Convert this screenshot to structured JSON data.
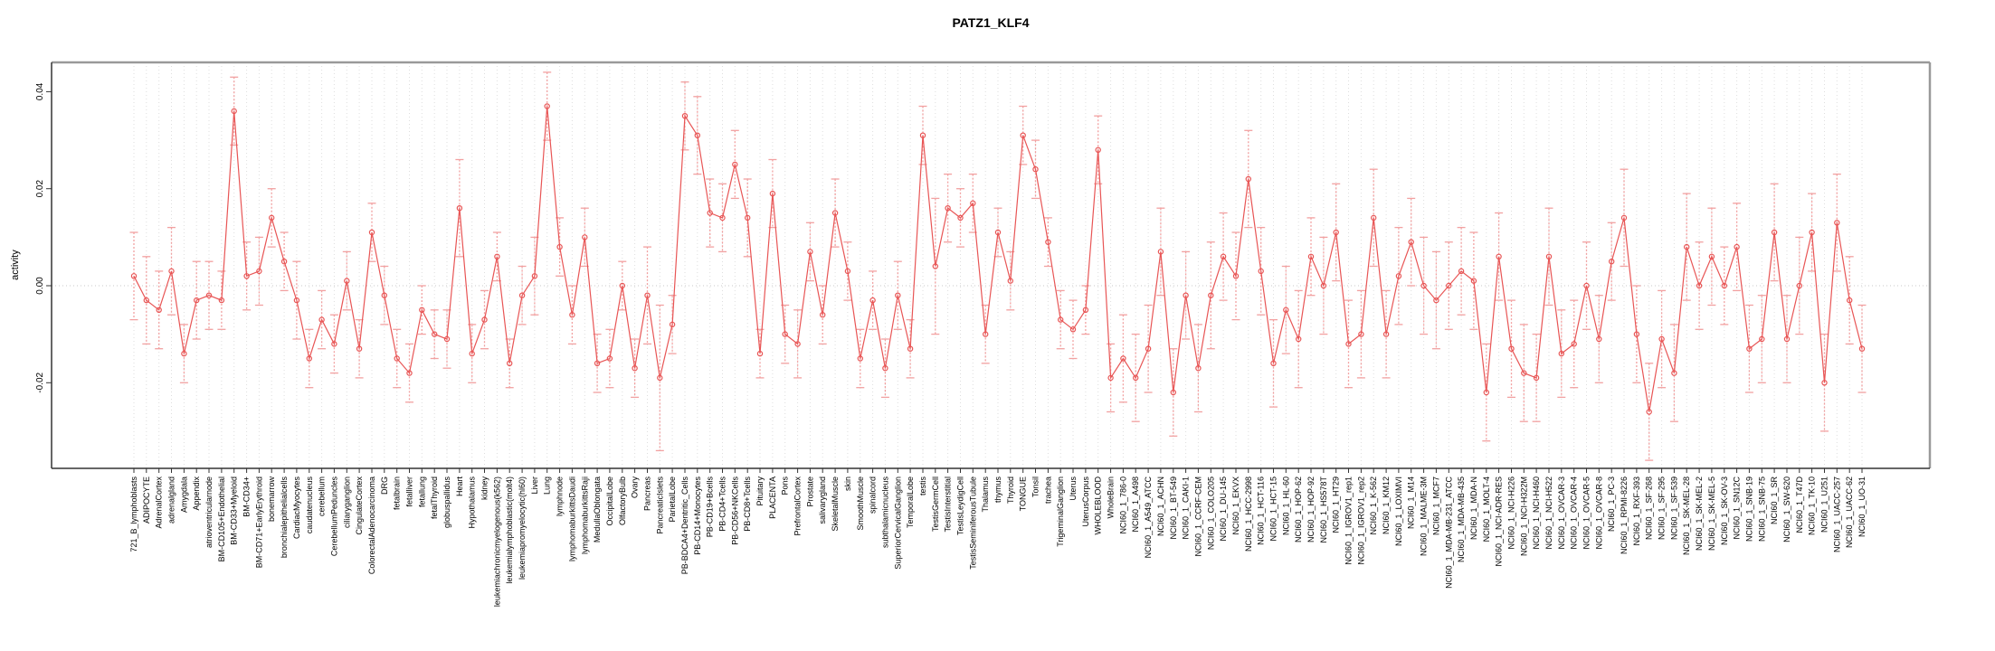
{
  "title": "PATZ1_KLF4",
  "y_axis": {
    "label": "activity"
  },
  "chart_data": {
    "type": "line",
    "title": "PATZ1_KLF4",
    "xlabel": "",
    "ylabel": "activity",
    "ylim": [
      -0.037,
      0.047
    ],
    "grid": "vertical-dotted",
    "zero_line": true,
    "legend": "none",
    "marker": "open-circle",
    "error_bars": true,
    "y_ticks": [
      {
        "label": "0.04",
        "value": 0.04
      },
      {
        "label": "0.02",
        "value": 0.02
      },
      {
        "label": "0.00",
        "value": 0.0
      },
      {
        "label": "-0.02",
        "value": -0.02
      }
    ],
    "colors": {
      "series": "#e85555",
      "error_bar": "#f2a1a1",
      "gridline": "#dedede",
      "zero_line": "#c9c9c9",
      "frame": "#999999",
      "axis": "#333333"
    },
    "categories": [
      "721_B_lymphoblasts",
      "ADIPOCYTE",
      "AdrenalCortex",
      "adrenalgland",
      "Amygdala",
      "Appendix",
      "atrioventricularnode",
      "BM-CD105+Endothelial",
      "BM-CD33+Myeloid",
      "BM-CD34+",
      "BM-CD71+EarlyErythroid",
      "bonemarrow",
      "bronchialepithelialcells",
      "CardiacMyocytes",
      "caudatenucleus",
      "cerebellum",
      "CerebellumPeduncles",
      "ciliaryganglion",
      "CingulateCortex",
      "ColorectalAdenocarcinoma",
      "DRG",
      "fetalbrain",
      "fetalliver",
      "fetallung",
      "fetalThyroid",
      "globuspallidus",
      "Heart",
      "Hypothalamus",
      "kidney",
      "leukemiachronicmyelogenous(k562)",
      "leukemialymphoblastic(molt4)",
      "leukemiapromyelocytic(hl60)",
      "Liver",
      "Lung",
      "lymphnode",
      "lymphomaburkittsDaudi",
      "lymphomaburkittsRaji",
      "MedullaOblongata",
      "OccipitalLobe",
      "OlfactoryBulb",
      "Ovary",
      "Pancreas",
      "PancreaticIslets",
      "ParietalLobe",
      "PB-BDCA4+Dentritic_Cells",
      "PB-CD14+Monocytes",
      "PB-CD19+Bcells",
      "PB-CD4+Tcells",
      "PB-CD56+NKCells",
      "PB-CD8+Tcells",
      "Pituitary",
      "PLACENTA",
      "Pons",
      "PrefrontalCortex",
      "Prostate",
      "salivarygland",
      "SkeletalMuscle",
      "skin",
      "SmoothMuscle",
      "spinalcord",
      "subthalamicnucleus",
      "SuperiorCervicalGanglion",
      "TemporalLobe",
      "testis",
      "TestisGermCell",
      "TestisInterstitial",
      "TestisLeydigCell",
      "TestisSeminiferousTubule",
      "Thalamus",
      "thymus",
      "Thyroid",
      "TONGUE",
      "Tonsil",
      "trachea",
      "TrigeminalGanglion",
      "Uterus",
      "UterusCorpus",
      "WHOLEBLOOD",
      "WholeBrain",
      "NCI60_1_786-0",
      "NCI60_1_A498",
      "NCI60_1_A549_ATCC",
      "NCI60_1_ACHN",
      "NCI60_1_BT-549",
      "NCI60_1_CAKI-1",
      "NCI60_1_CCRF-CEM",
      "NCI60_1_COLO205",
      "NCI60_1_DU-145",
      "NCI60_1_EKVX",
      "NCI60_1_HCC-2998",
      "NCI60_1_HCT-116",
      "NCI60_1_HCT-15",
      "NCI60_1_HL-60",
      "NCI60_1_HOP-62",
      "NCI60_1_HOP-92",
      "NCI60_1_HS578T",
      "NCI60_1_HT29",
      "NCI60_1_IGROV1_rep1",
      "NCI60_1_IGROV1_rep2",
      "NCI60_1_K-562",
      "NCI60_1_KM12",
      "NCI60_1_LOXIMVI",
      "NCI60_1_M14",
      "NCI60_1_MALME-3M",
      "NCI60_1_MCF7",
      "NCI60_1_MDA-MB-231_ATCC",
      "NCI60_1_MDA-MB-435",
      "NCI60_1_MDA-N",
      "NCI60_1_MOLT-4",
      "NCI60_1_NCI-ADR-RES",
      "NCI60_1_NCI-H226",
      "NCI60_1_NCI-H322M",
      "NCI60_1_NCI-H460",
      "NCI60_1_NCI-H522",
      "NCI60_1_OVCAR-3",
      "NCI60_1_OVCAR-4",
      "NCI60_1_OVCAR-5",
      "NCI60_1_OVCAR-8",
      "NCI60_1_PC-3",
      "NCI60_1_RPMI-8226",
      "NCI60_1_RXF-393",
      "NCI60_1_SF-268",
      "NCI60_1_SF-295",
      "NCI60_1_SF-539",
      "NCI60_1_SK-MEL-28",
      "NCI60_1_SK-MEL-2",
      "NCI60_1_SK-MEL-5",
      "NCI60_1_SK-OV-3",
      "NCI60_1_SN12C",
      "NCI60_1_SNB-19",
      "NCI60_1_SNB-75",
      "NCI60_1_SR",
      "NCI60_1_SW-620",
      "NCI60_1_T47D",
      "NCI60_1_TK-10",
      "NCI60_1_U251",
      "NCI60_1_UACC-257",
      "NCI60_1_UACC-62",
      "NCI60_1_UO-31"
    ],
    "series": [
      {
        "name": "activity",
        "values": [
          0.002,
          -0.003,
          -0.005,
          0.003,
          -0.014,
          -0.003,
          -0.002,
          -0.003,
          0.036,
          0.002,
          0.003,
          0.014,
          0.005,
          -0.003,
          -0.015,
          -0.007,
          -0.012,
          0.001,
          -0.013,
          0.011,
          -0.002,
          -0.015,
          -0.018,
          -0.005,
          -0.01,
          -0.011,
          0.016,
          -0.014,
          -0.007,
          0.006,
          -0.016,
          -0.002,
          0.002,
          0.037,
          0.008,
          -0.006,
          0.01,
          -0.016,
          -0.015,
          0.0,
          -0.017,
          -0.002,
          -0.019,
          -0.008,
          0.035,
          0.031,
          0.015,
          0.014,
          0.025,
          0.014,
          -0.014,
          0.019,
          -0.01,
          -0.012,
          0.007,
          -0.006,
          0.015,
          0.003,
          -0.015,
          -0.003,
          -0.017,
          -0.002,
          -0.013,
          0.031,
          0.004,
          0.016,
          0.014,
          0.017,
          -0.01,
          0.011,
          0.001,
          0.031,
          0.024,
          0.009,
          -0.007,
          -0.009,
          -0.005,
          0.028,
          -0.019,
          -0.015,
          -0.019,
          -0.013,
          0.007,
          -0.022,
          -0.002,
          -0.017,
          -0.002,
          0.006,
          0.002,
          0.022,
          0.003,
          -0.016,
          -0.005,
          -0.011,
          0.006,
          0.0,
          0.011,
          -0.012,
          -0.01,
          0.014,
          -0.01,
          0.002,
          0.009,
          0.0,
          -0.003,
          0.0,
          0.003,
          0.001,
          -0.022,
          0.006,
          -0.013,
          -0.018,
          -0.019,
          0.006,
          -0.014,
          -0.012,
          0.0,
          -0.011,
          0.005,
          0.014,
          -0.01,
          -0.026,
          -0.011,
          -0.018,
          0.008,
          0.0,
          0.006,
          0.0,
          0.008,
          -0.013,
          -0.011,
          0.011,
          -0.011,
          0.0,
          0.011,
          -0.02,
          0.013,
          -0.003,
          -0.013
        ],
        "errors": [
          0.009,
          0.009,
          0.008,
          0.009,
          0.006,
          0.008,
          0.007,
          0.006,
          0.007,
          0.007,
          0.007,
          0.006,
          0.006,
          0.008,
          0.006,
          0.006,
          0.006,
          0.006,
          0.006,
          0.006,
          0.006,
          0.006,
          0.006,
          0.005,
          0.005,
          0.006,
          0.01,
          0.006,
          0.006,
          0.005,
          0.005,
          0.006,
          0.008,
          0.007,
          0.006,
          0.006,
          0.006,
          0.006,
          0.006,
          0.005,
          0.006,
          0.01,
          0.015,
          0.006,
          0.007,
          0.008,
          0.007,
          0.007,
          0.007,
          0.008,
          0.005,
          0.007,
          0.006,
          0.007,
          0.006,
          0.006,
          0.007,
          0.006,
          0.006,
          0.006,
          0.006,
          0.007,
          0.006,
          0.006,
          0.014,
          0.007,
          0.006,
          0.006,
          0.006,
          0.005,
          0.006,
          0.006,
          0.006,
          0.005,
          0.006,
          0.006,
          0.005,
          0.007,
          0.007,
          0.009,
          0.009,
          0.009,
          0.009,
          0.009,
          0.009,
          0.009,
          0.011,
          0.009,
          0.009,
          0.01,
          0.009,
          0.009,
          0.009,
          0.01,
          0.008,
          0.01,
          0.01,
          0.009,
          0.009,
          0.01,
          0.009,
          0.01,
          0.009,
          0.01,
          0.01,
          0.009,
          0.009,
          0.01,
          0.01,
          0.009,
          0.01,
          0.01,
          0.009,
          0.01,
          0.009,
          0.009,
          0.009,
          0.009,
          0.008,
          0.01,
          0.01,
          0.01,
          0.01,
          0.01,
          0.011,
          0.009,
          0.01,
          0.008,
          0.009,
          0.009,
          0.009,
          0.01,
          0.009,
          0.01,
          0.008,
          0.01,
          0.01,
          0.009,
          0.009
        ]
      }
    ]
  }
}
